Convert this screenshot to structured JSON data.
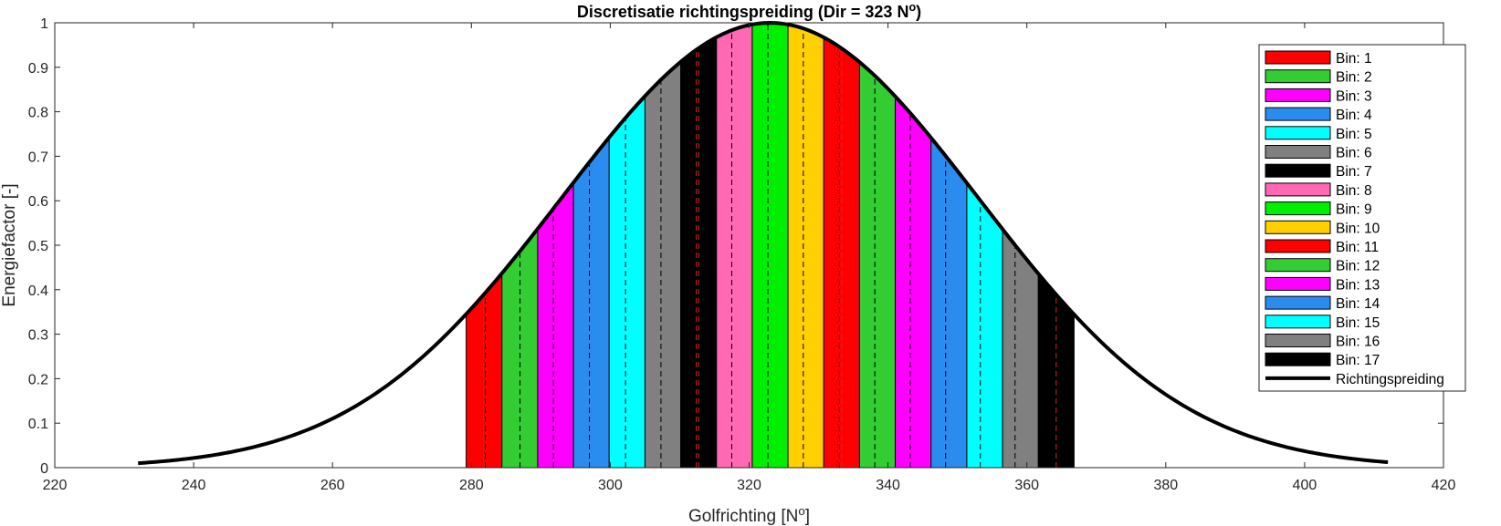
{
  "chart_data": {
    "type": "area",
    "title": {
      "main": "Discretisatie richtingspreiding (Dir = 323 N",
      "sup": "o",
      "suffix": ")"
    },
    "xlabel": {
      "main": "Golfrichting [N",
      "sup": "o",
      "suffix": "]"
    },
    "ylabel": "Energiefactor [-]",
    "xlim": [
      220,
      420
    ],
    "ylim": [
      0,
      1
    ],
    "xticks": [
      220,
      240,
      260,
      280,
      300,
      320,
      340,
      360,
      380,
      400,
      420
    ],
    "yticks": [
      0,
      0.1,
      0.2,
      0.3,
      0.4,
      0.5,
      0.6,
      0.7,
      0.8,
      0.9,
      1
    ],
    "ytick_labels": [
      "0",
      "0.1",
      "0.2",
      "0.3",
      "0.4",
      "0.5",
      "0.6",
      "0.7",
      "0.8",
      "0.9",
      "1"
    ],
    "spreading": {
      "name": "Richtingspreiding",
      "mean_dir": 323,
      "sigma": 30,
      "x_range": [
        232,
        412
      ],
      "color": "#000000"
    },
    "bins": {
      "start": 279.25,
      "width": 5.15,
      "count": 17,
      "center_line_color": "#d62728",
      "colors": [
        "#ff0000",
        "#33cc33",
        "#ff00ff",
        "#2b8cf0",
        "#00ffff",
        "#808080",
        "#000000",
        "#ff69b4",
        "#00ee00",
        "#ffd000",
        "#ff0000",
        "#33cc33",
        "#ff00ff",
        "#2b8cf0",
        "#00ffff",
        "#808080",
        "#000000"
      ],
      "sub_lines": [
        [
          282.0
        ],
        [
          287.0
        ],
        [
          291.8
        ],
        [
          297.0
        ],
        [
          302.2
        ],
        [
          307.3
        ],
        [
          312.4
        ],
        [
          317.5
        ],
        [
          322.7
        ],
        [
          327.8
        ],
        [
          333.0
        ],
        [
          338.1
        ],
        [
          343.2
        ],
        [
          348.3
        ],
        [
          353.3
        ],
        [
          358.3
        ],
        [
          363.3
        ]
      ]
    },
    "legend": {
      "position": "top-right",
      "entries": [
        "Bin: 1",
        "Bin: 2",
        "Bin: 3",
        "Bin: 4",
        "Bin: 5",
        "Bin: 6",
        "Bin: 7",
        "Bin: 8",
        "Bin: 9",
        "Bin: 10",
        "Bin: 11",
        "Bin: 12",
        "Bin: 13",
        "Bin: 14",
        "Bin: 15",
        "Bin: 16",
        "Bin: 17",
        "Richtingspreiding"
      ]
    },
    "grid": false
  }
}
